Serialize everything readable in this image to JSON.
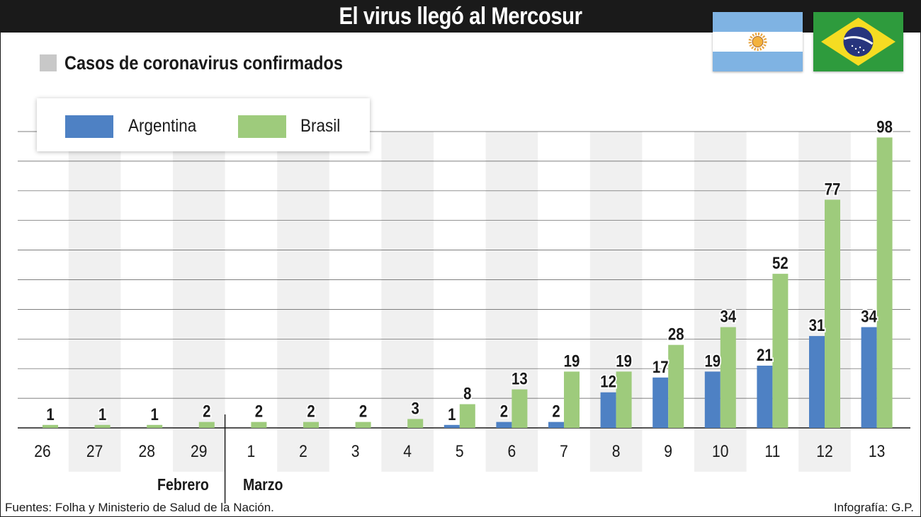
{
  "title": "El virus llegó al Mercosur",
  "subtitle": "Casos de coronavirus confirmados",
  "legend": {
    "argentina": "Argentina",
    "brasil": "Brasil"
  },
  "months": {
    "left": "Febrero",
    "right": "Marzo"
  },
  "footer": {
    "source": "Fuentes: Folha y Ministerio de Salud de la Nación.",
    "credit": "Infografía: G.P."
  },
  "colors": {
    "argentina": "#4e81c4",
    "brasil": "#9ecb7c",
    "band": "#f0f0f0",
    "grid": "#555555",
    "title_bar": "#1a1a1a"
  },
  "flags": [
    "argentina-flag",
    "brasil-flag"
  ],
  "chart_data": {
    "type": "bar",
    "categories": [
      "26",
      "27",
      "28",
      "29",
      "1",
      "2",
      "3",
      "4",
      "5",
      "6",
      "7",
      "8",
      "9",
      "10",
      "11",
      "12",
      "13"
    ],
    "series": [
      {
        "name": "Argentina",
        "values": [
          null,
          null,
          null,
          null,
          null,
          null,
          null,
          null,
          1,
          2,
          2,
          12,
          17,
          19,
          21,
          31,
          34
        ]
      },
      {
        "name": "Brasil",
        "values": [
          1,
          1,
          1,
          2,
          2,
          2,
          2,
          3,
          8,
          13,
          19,
          19,
          28,
          34,
          52,
          77,
          98
        ]
      }
    ],
    "ylim": [
      0,
      100
    ],
    "grid": true,
    "legend": "top-left",
    "month_divider_after": "29"
  }
}
